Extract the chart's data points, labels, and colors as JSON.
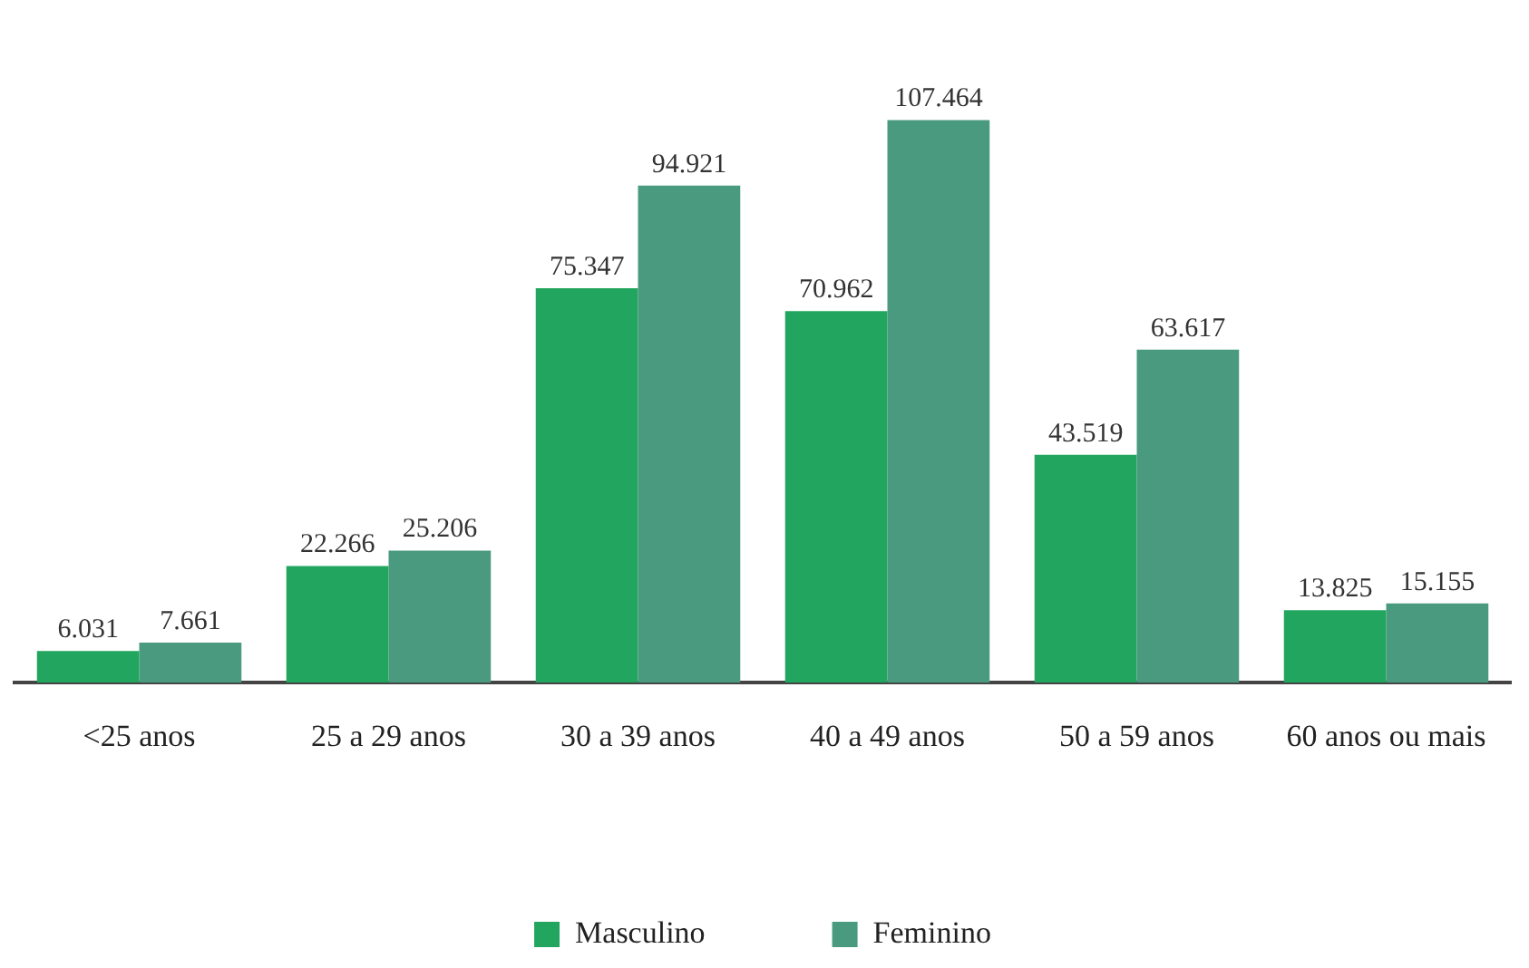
{
  "chart_data": {
    "type": "bar",
    "categories": [
      "<25 anos",
      "25 a 29 anos",
      "30 a 39 anos",
      "40 a 49 anos",
      "50 a 59 anos",
      "60 anos ou mais"
    ],
    "series": [
      {
        "name": "Masculino",
        "color": "#22a55e",
        "values": [
          6031,
          22266,
          75347,
          70962,
          43519,
          13825
        ],
        "value_labels": [
          "6.031",
          "22.266",
          "75.347",
          "70.962",
          "43.519",
          "13.825"
        ]
      },
      {
        "name": "Feminino",
        "color": "#4a9a80",
        "values": [
          7661,
          25206,
          94921,
          107464,
          63617,
          15155
        ],
        "value_labels": [
          "7.661",
          "25.206",
          "94.921",
          "107.464",
          "63.617",
          "15.155"
        ]
      }
    ],
    "legend": "bottom",
    "grid": false,
    "tick_labels": "x"
  }
}
